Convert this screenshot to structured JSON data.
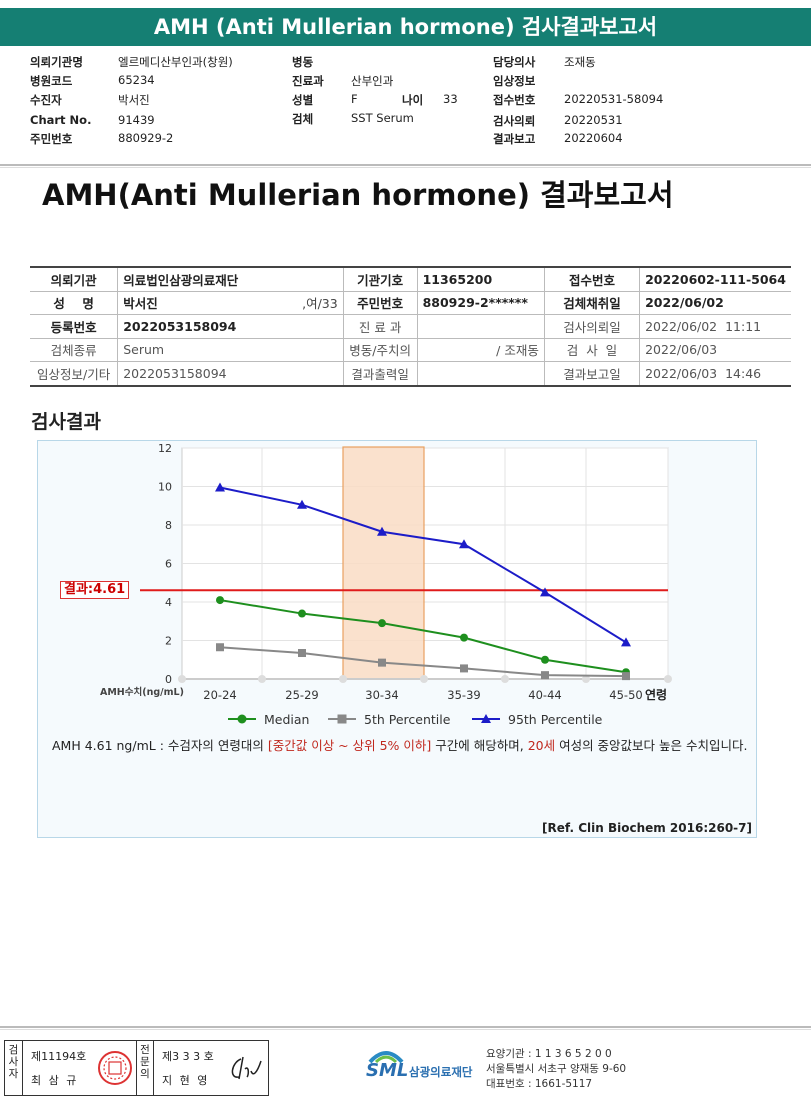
{
  "report_header": {
    "title": "AMH (Anti Mullerian hormone) 검사결과보고서",
    "fields": [
      {
        "label": "의뢰기관명",
        "value": "엘르메디산부인과(창원)"
      },
      {
        "label": "병원코드",
        "value": "65234"
      },
      {
        "label": "수진자",
        "value": "박서진"
      },
      {
        "label": "Chart No.",
        "value": "91439"
      },
      {
        "label": "주민번호",
        "value": "880929-2"
      },
      {
        "label": "병동",
        "value": ""
      },
      {
        "label": "진료과",
        "value": "산부인과"
      },
      {
        "label": "성별",
        "value": "F"
      },
      {
        "label": "나이",
        "value": "33"
      },
      {
        "label": "검체",
        "value": "SST Serum"
      },
      {
        "label": "담당의사",
        "value": "조재동"
      },
      {
        "label": "임상정보",
        "value": ""
      },
      {
        "label": "접수번호",
        "value": "20220531-58094"
      },
      {
        "label": "검사의뢰",
        "value": "20220531"
      },
      {
        "label": "결과보고",
        "value": "20220604"
      }
    ]
  },
  "main_title": "AMH(Anti Mullerian hormone) 결과보고서",
  "info_table": {
    "r1": [
      "의뢰기관",
      "의료법인삼광의료재단",
      "기관기호",
      "11365200",
      "접수번호",
      "20220602-111-5064"
    ],
    "r2": [
      "성    명",
      "박서진",
      ",여/33",
      "주민번호",
      "880929-2******",
      "검체채취일",
      "2022/06/02"
    ],
    "r3": [
      "등록번호",
      "2022053158094",
      "진 료 과",
      "",
      "검사의뢰일",
      "2022/06/02  11:11"
    ],
    "r4": [
      "검체종류",
      "Serum",
      "병동/주치의",
      "/ 조재동",
      "검  사  일",
      "2022/06/03"
    ],
    "r5": [
      "임상정보/기타",
      "2022053158094",
      "결과출력일",
      "",
      "결과보고일",
      "2022/06/03  14:46"
    ]
  },
  "section_title": "검사결과",
  "chart_data": {
    "type": "line",
    "categories": [
      "20-24",
      "25-29",
      "30-34",
      "35-39",
      "40-44",
      "45-50"
    ],
    "xlabel": "연령",
    "ylabel": "AMH수치(ng/mL)",
    "ylim": [
      0,
      12
    ],
    "yticks": [
      0,
      2,
      4,
      6,
      8,
      10,
      12
    ],
    "grid": true,
    "highlight_category": "30-34",
    "result_line": {
      "label": "결과:4.61",
      "value": 4.61,
      "color": "#e01b1b"
    },
    "series": [
      {
        "name": "Median",
        "color": "#1e8f1e",
        "marker": "circle",
        "values": [
          4.1,
          3.4,
          2.9,
          2.15,
          1.0,
          0.35
        ]
      },
      {
        "name": "5th Percentile",
        "color": "#888888",
        "marker": "square",
        "values": [
          1.65,
          1.35,
          0.85,
          0.55,
          0.2,
          0.15
        ]
      },
      {
        "name": "95th Percentile",
        "color": "#1c1cc8",
        "marker": "triangle",
        "values": [
          9.95,
          9.05,
          7.65,
          7.0,
          4.5,
          1.9
        ]
      }
    ],
    "legend_position": "bottom"
  },
  "description": {
    "p1": "AMH  4.61 ng/mL : 수검자의 연령대의 ",
    "red1": "[중간값 이상 ~ 상위 5% 이하]",
    "p2": " 구간에 해당하며, ",
    "red2": "20세",
    "p3": " 여성의 중앙값보다 높은 수치입니다."
  },
  "reference": "[Ref. Clin Biochem 2016:260-7]",
  "signature": {
    "col1_label": "검사자",
    "col1_no": "제11194호",
    "col1_name": "최 삼 규",
    "col2_label": "전문의",
    "col2_no": "제3 3 3 호",
    "col2_name": "지 현 영"
  },
  "footer": {
    "logo_text": "SML",
    "org": "삼광의료재단",
    "line1": "요양기관 : 1 1 3 6 5 2 0 0",
    "line2": "서울특별시 서초구 양재동 9-60",
    "line3": "대표번호 : 1661-5117"
  }
}
